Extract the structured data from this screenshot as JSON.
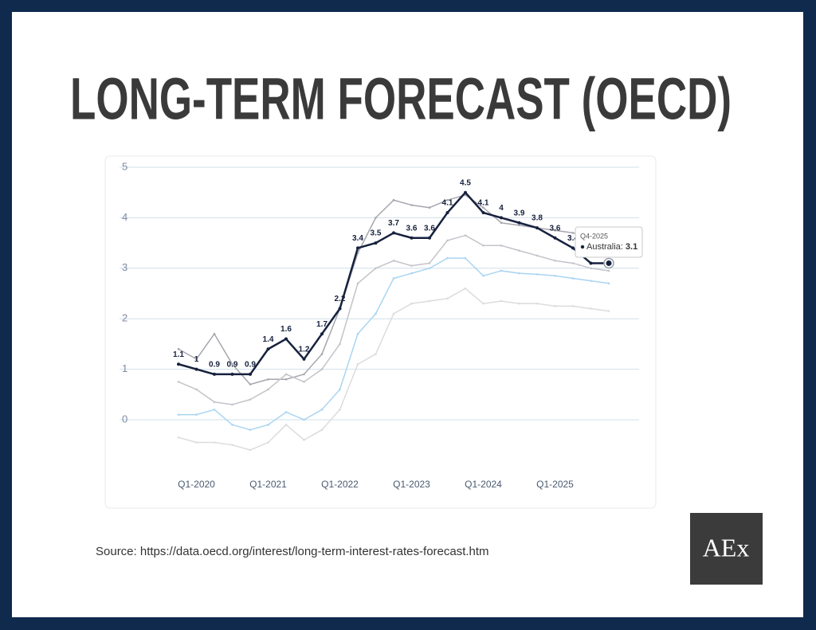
{
  "title": "LONG-TERM FORECAST (OECD)",
  "source": "Source: https://data.oecd.org/interest/long-term-interest-rates-forecast.htm",
  "logo": "AEx",
  "tooltip": {
    "category": "Q4-2025",
    "label": "Australia:",
    "value": "3.1"
  },
  "chart_data": {
    "type": "line",
    "categories": [
      null,
      "Q1-2020",
      null,
      null,
      null,
      "Q1-2021",
      null,
      null,
      null,
      "Q1-2022",
      null,
      null,
      null,
      "Q1-2023",
      null,
      null,
      null,
      "Q1-2024",
      null,
      null,
      null,
      "Q1-2025",
      null,
      null,
      null
    ],
    "series": [
      {
        "color": "#a6a6ae",
        "values": [
          1.4,
          1.2,
          1.7,
          1.1,
          0.7,
          0.8,
          0.8,
          0.9,
          1.3,
          2.2,
          3.3,
          4.0,
          4.35,
          4.25,
          4.2,
          4.35,
          4.45,
          4.2,
          3.9,
          3.85,
          3.8,
          3.75,
          3.7,
          3.6,
          3.5
        ]
      },
      {
        "color": "#c3c3ca",
        "values": [
          0.75,
          0.6,
          0.35,
          0.3,
          0.4,
          0.6,
          0.9,
          0.75,
          1.0,
          1.5,
          2.7,
          3.0,
          3.15,
          3.05,
          3.1,
          3.55,
          3.65,
          3.45,
          3.45,
          3.35,
          3.25,
          3.15,
          3.1,
          3.0,
          2.95
        ]
      },
      {
        "color": "#a9d5f2",
        "values": [
          0.1,
          0.1,
          0.2,
          -0.1,
          -0.2,
          -0.1,
          0.15,
          0,
          0.2,
          0.6,
          1.7,
          2.1,
          2.8,
          2.9,
          3.0,
          3.2,
          3.2,
          2.85,
          2.95,
          2.9,
          2.88,
          2.85,
          2.8,
          2.75,
          2.7
        ]
      },
      {
        "color": "#dcdcdf",
        "values": [
          -0.35,
          -0.45,
          -0.45,
          -0.5,
          -0.6,
          -0.45,
          -0.1,
          -0.4,
          -0.2,
          0.2,
          1.1,
          1.3,
          2.1,
          2.3,
          2.35,
          2.4,
          2.6,
          2.3,
          2.35,
          2.3,
          2.3,
          2.25,
          2.25,
          2.2,
          2.15
        ]
      },
      {
        "name": "Australia",
        "color": "#16213e",
        "values": [
          1.1,
          1,
          0.9,
          0.9,
          0.9,
          1.4,
          1.6,
          1.2,
          1.7,
          2.2,
          3.4,
          3.5,
          3.7,
          3.6,
          3.6,
          4.1,
          4.5,
          4.1,
          4,
          3.9,
          3.8,
          3.6,
          3.4,
          3.1,
          3.1
        ]
      }
    ],
    "ylim": [
      -0.8,
      5
    ],
    "yticks": [
      0,
      1,
      2,
      3,
      4,
      5
    ],
    "grid": true
  }
}
